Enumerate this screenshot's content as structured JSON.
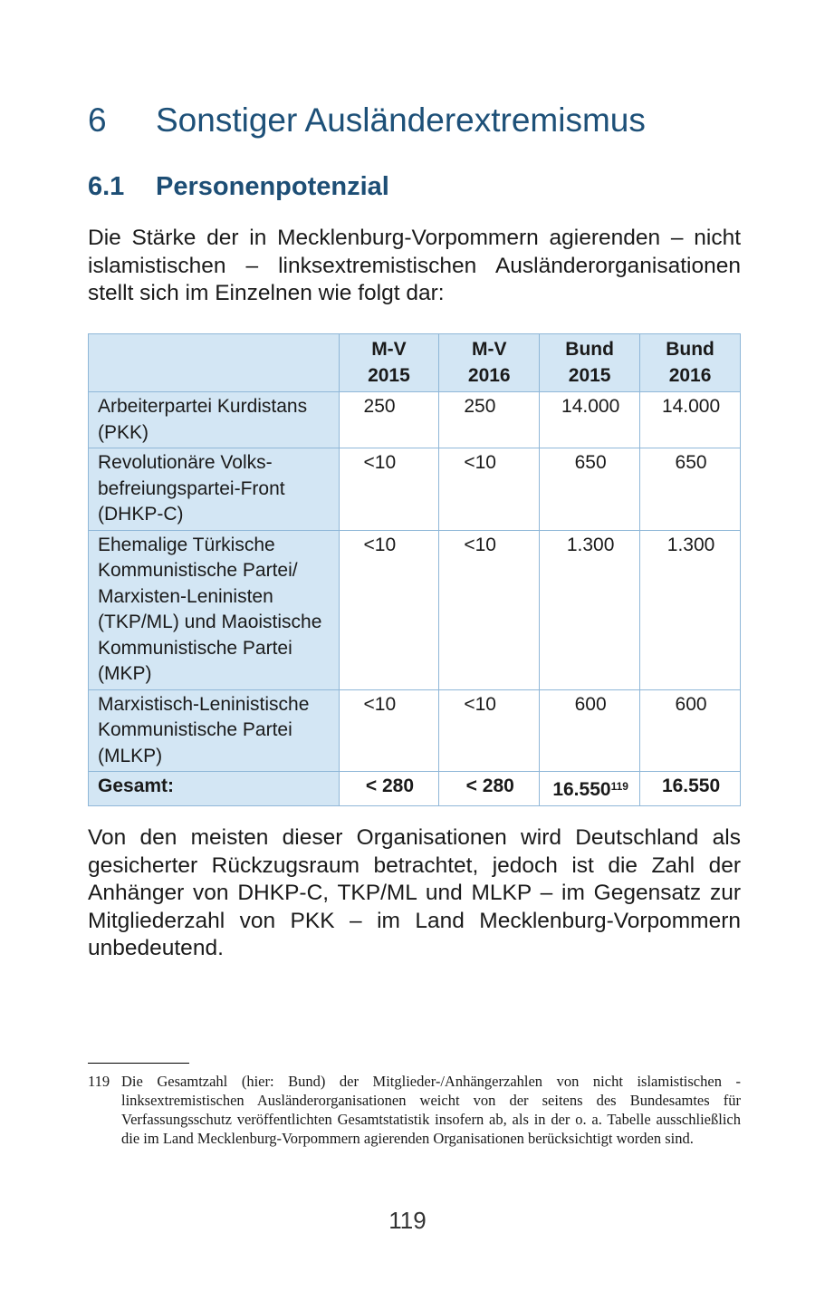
{
  "chapter": {
    "number": "6",
    "title": "Sonstiger Ausländerextremismus"
  },
  "section": {
    "number": "6.1",
    "title": "Personenpotenzial"
  },
  "intro": "Die Stärke der in Mecklenburg-Vorpommern agierenden – nicht islamistischen – linksextremistischen Ausländerorganisationen stellt sich im Einzelnen wie folgt dar:",
  "table": {
    "headers": [
      "",
      "M-V 2015",
      "M-V 2016",
      "Bund 2015",
      "Bund 2016"
    ],
    "rows": [
      {
        "label": "Arbeiterpartei Kurdistans (PKK)",
        "values": [
          "250",
          "250",
          "14.000",
          "14.000"
        ]
      },
      {
        "label": "Revolutionäre Volks­befreiungspartei-Front (DHKP-C)",
        "values": [
          "<10",
          "<10",
          "650",
          "650"
        ]
      },
      {
        "label": "Ehemalige Türkische Kommunistische Partei/ Marxisten-Leninisten (TKP/ML) und Maoisti­sche Kommunistische Partei (MKP)",
        "values": [
          "<10",
          "<10",
          "1.300",
          "1.300"
        ]
      },
      {
        "label": "Marxistisch-Leninistische Kommunistische Partei (MLKP)",
        "values": [
          "<10",
          "<10",
          "600",
          "600"
        ]
      }
    ],
    "total": {
      "label": "Gesamt:",
      "values": [
        "< 280",
        "< 280",
        "16.550",
        "16.550"
      ],
      "footnote_ref": "119"
    }
  },
  "body": "Von den meisten dieser Organisationen wird Deutschland als gesicherter Rückzugsraum betrachtet, jedoch ist die Zahl der Anhänger von DHKP-C, TKP/ML und MLKP – im Gegensatz zur Mitgliederzahl von PKK – im Land Mecklenburg-Vorpommern unbedeutend.",
  "footnote": {
    "number": "119",
    "text": "Die Gesamtzahl (hier: Bund) der Mitglieder-/Anhängerzahlen von nicht islamistischen - linksextremistischen Ausländerorganisationen weicht von der seitens des Bundesamtes für Verfassungsschutz veröffentlichten Gesamtstatistik insofern ab, als in der o. a. Tabelle ausschließlich die im Land Mecklenburg-Vorpommern agierenden Organisationen berücksichtigt worden sind."
  },
  "page_number": "119"
}
